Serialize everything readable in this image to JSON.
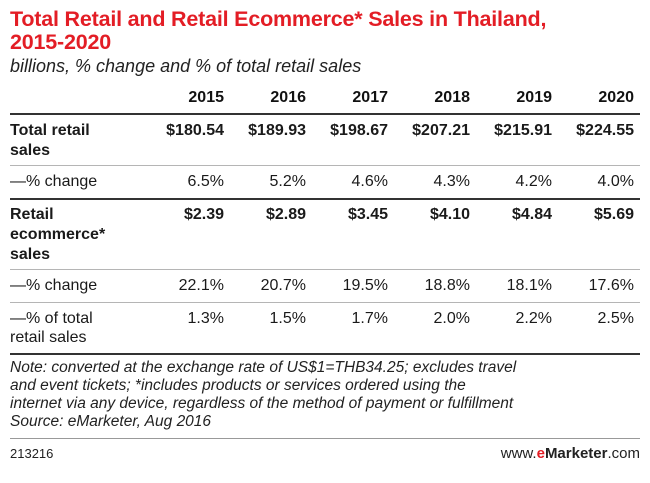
{
  "chart_data": {
    "type": "table",
    "title_line1": "Total Retail and Retail Ecommerce* Sales in Thailand,",
    "title_line2": "2015-2020",
    "subtitle": "billions, % change and % of total retail sales",
    "columns": [
      "2015",
      "2016",
      "2017",
      "2018",
      "2019",
      "2020"
    ],
    "rows": [
      {
        "label_lines": [
          "Total retail",
          "sales"
        ],
        "cells": [
          "$180.54",
          "$189.93",
          "$198.67",
          "$207.21",
          "$215.91",
          "$224.55"
        ],
        "values": [
          180.54,
          189.93,
          198.67,
          207.21,
          215.91,
          224.55
        ],
        "unit": "billions USD"
      },
      {
        "label_lines": [
          "—% change"
        ],
        "cells": [
          "6.5%",
          "5.2%",
          "4.6%",
          "4.3%",
          "4.2%",
          "4.0%"
        ],
        "values": [
          6.5,
          5.2,
          4.6,
          4.3,
          4.2,
          4.0
        ],
        "unit": "%"
      },
      {
        "label_lines": [
          "Retail",
          "ecommerce*",
          "sales"
        ],
        "cells": [
          "$2.39",
          "$2.89",
          "$3.45",
          "$4.10",
          "$4.84",
          "$5.69"
        ],
        "values": [
          2.39,
          2.89,
          3.45,
          4.1,
          4.84,
          5.69
        ],
        "unit": "billions USD"
      },
      {
        "label_lines": [
          "—% change"
        ],
        "cells": [
          "22.1%",
          "20.7%",
          "19.5%",
          "18.8%",
          "18.1%",
          "17.6%"
        ],
        "values": [
          22.1,
          20.7,
          19.5,
          18.8,
          18.1,
          17.6
        ],
        "unit": "%"
      },
      {
        "label_lines": [
          "—% of total",
          "retail sales"
        ],
        "cells": [
          "1.3%",
          "1.5%",
          "1.7%",
          "2.0%",
          "2.2%",
          "2.5%"
        ],
        "values": [
          1.3,
          1.5,
          1.7,
          2.0,
          2.2,
          2.5
        ],
        "unit": "%"
      }
    ],
    "note_lines": [
      "Note: converted at the exchange rate of US$1=THB34.25; excludes travel",
      "and event tickets; *includes products or services ordered using the",
      "internet via any device, regardless of the method of payment or fulfillment",
      "Source: eMarketer, Aug 2016"
    ]
  },
  "footer": {
    "chart_id": "213216",
    "brand_prefix": "www.",
    "brand_mark": "e",
    "brand_name": "Marketer",
    "brand_suffix": ".com"
  },
  "colors": {
    "title": "#e31d25",
    "rule": "#333333",
    "thin_rule": "#b5b5b5"
  }
}
